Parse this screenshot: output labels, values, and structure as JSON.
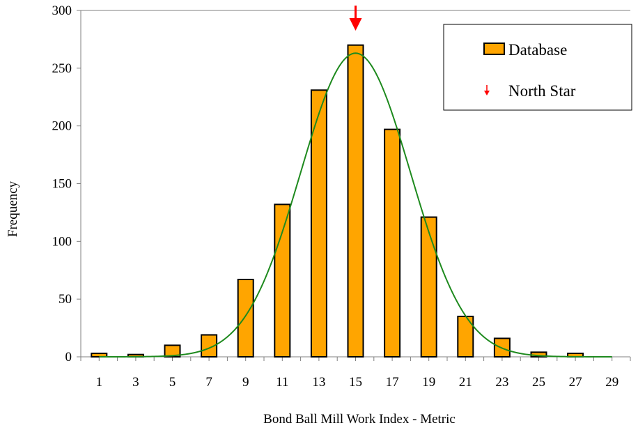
{
  "chart_data": {
    "type": "bar",
    "title": "",
    "xlabel": "Bond Ball Mill Work Index - Metric",
    "ylabel": "Frequency",
    "categories": [
      "1",
      "3",
      "5",
      "7",
      "9",
      "11",
      "13",
      "15",
      "17",
      "19",
      "21",
      "23",
      "25",
      "27",
      "29"
    ],
    "x": [
      1,
      3,
      5,
      7,
      9,
      11,
      13,
      15,
      17,
      19,
      21,
      23,
      25,
      27,
      29
    ],
    "series": [
      {
        "name": "Database",
        "values": [
          3,
          2,
          10,
          19,
          67,
          132,
          231,
          270,
          197,
          121,
          35,
          16,
          4,
          3,
          0
        ],
        "color": "#ffa500"
      }
    ],
    "fit_curve": {
      "type": "normal",
      "mean": 15.0,
      "std": 3.0,
      "peak": 263,
      "color": "#1e8a1e"
    },
    "marker": {
      "name": "North Star",
      "x": 15,
      "symbol": "down-arrow",
      "color": "#ff0000"
    },
    "ylim": [
      0,
      300
    ],
    "yticks": [
      0,
      50,
      100,
      150,
      200,
      250,
      300
    ],
    "xlim": [
      0,
      30
    ],
    "grid": false,
    "legend_position": "top-right"
  },
  "legend": {
    "items": [
      {
        "label": "Database"
      },
      {
        "label": "North Star"
      }
    ]
  }
}
